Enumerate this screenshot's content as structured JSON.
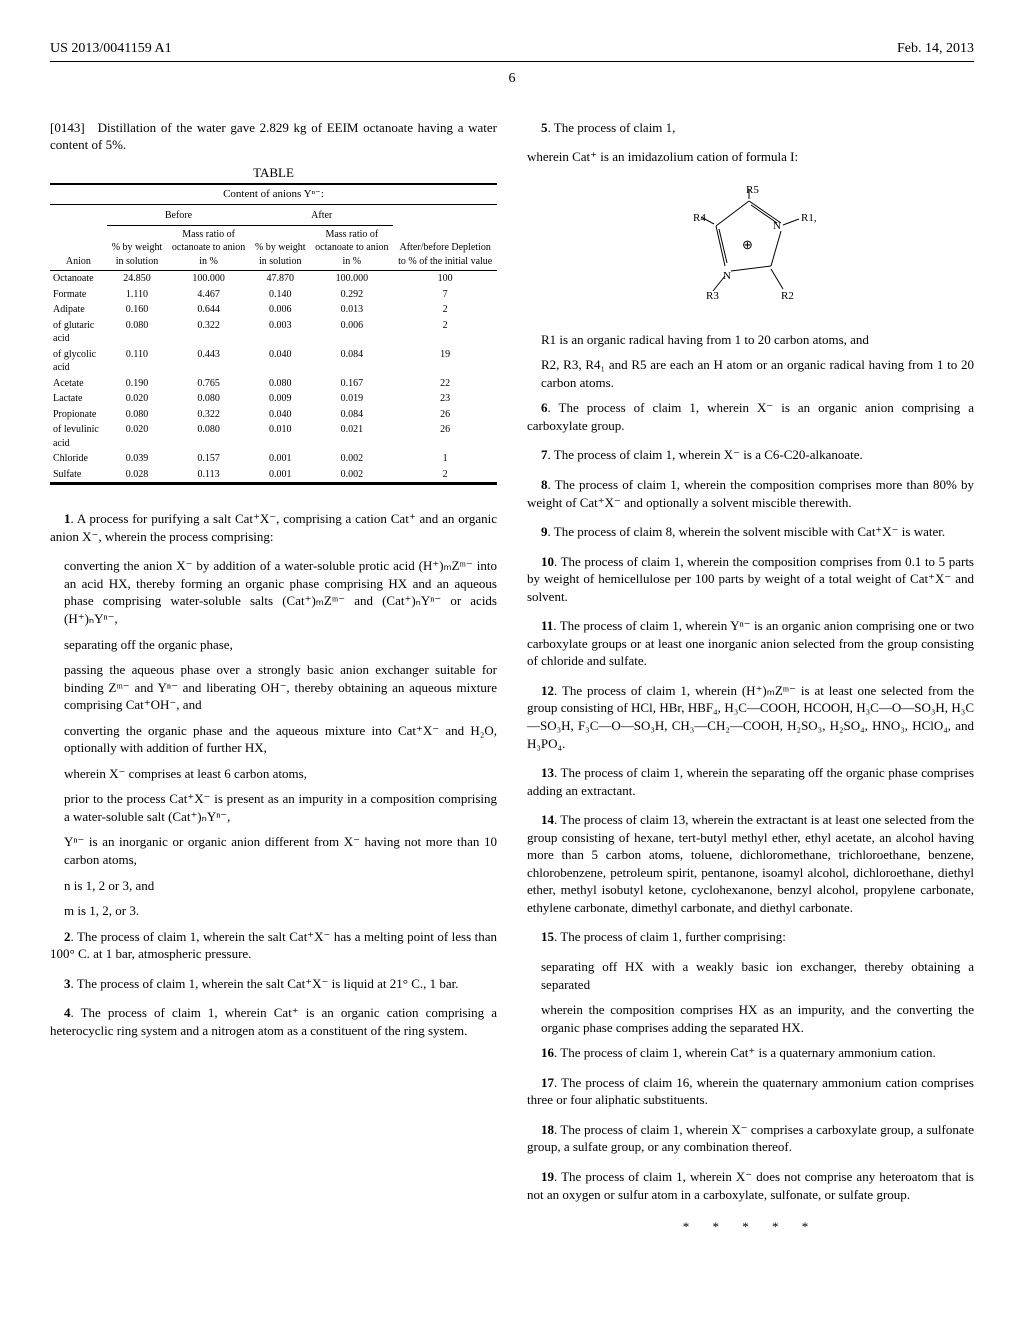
{
  "header": {
    "doc_number": "US 2013/0041159 A1",
    "date": "Feb. 14, 2013",
    "page_number": "6"
  },
  "left_col": {
    "para_0143": "[0143] Distillation of the water gave 2.829 kg of EEIM octanoate having a water content of 5%.",
    "table": {
      "caption": "TABLE",
      "subcaption": "Content of anions Yⁿ⁻:",
      "group_before": "Before",
      "group_after": "After",
      "col_headers": {
        "anion": "Anion",
        "before_wt": "% by weight in solution",
        "before_ratio": "Mass ratio of octanoate to anion in %",
        "after_wt": "% by weight in solution",
        "after_ratio": "Mass ratio of octanoate to anion in %",
        "depletion": "After/before Depletion to % of the initial value"
      },
      "rows": [
        [
          "Octanoate",
          "24.850",
          "100.000",
          "47.870",
          "100.000",
          "100"
        ],
        [
          "Formate",
          "1.110",
          "4.467",
          "0.140",
          "0.292",
          "7"
        ],
        [
          "Adipate",
          "0.160",
          "0.644",
          "0.006",
          "0.013",
          "2"
        ],
        [
          "of glutaric acid",
          "0.080",
          "0.322",
          "0.003",
          "0.006",
          "2"
        ],
        [
          "of glycolic acid",
          "0.110",
          "0.443",
          "0.040",
          "0.084",
          "19"
        ],
        [
          "Acetate",
          "0.190",
          "0.765",
          "0.080",
          "0.167",
          "22"
        ],
        [
          "Lactate",
          "0.020",
          "0.080",
          "0.009",
          "0.019",
          "23"
        ],
        [
          "Propionate",
          "0.080",
          "0.322",
          "0.040",
          "0.084",
          "26"
        ],
        [
          "of levulinic acid",
          "0.020",
          "0.080",
          "0.010",
          "0.021",
          "26"
        ],
        [
          "Chloride",
          "0.039",
          "0.157",
          "0.001",
          "0.002",
          "1"
        ],
        [
          "Sulfate",
          "0.028",
          "0.113",
          "0.001",
          "0.002",
          "2"
        ]
      ]
    },
    "claim1_intro": "1. A process for purifying a salt Cat⁺X⁻, comprising a cation Cat⁺ and an organic anion X⁻, wherein the process comprising:",
    "claim1_steps": [
      "converting the anion X⁻ by addition of a water-soluble protic acid (H⁺)ₘZᵐ⁻ into an acid HX, thereby forming an organic phase comprising HX and an aqueous phase comprising water-soluble salts (Cat⁺)ₘZᵐ⁻ and (Cat⁺)ₙYⁿ⁻ or acids (H⁺)ₙYⁿ⁻,",
      "separating off the organic phase,",
      "passing the aqueous phase over a strongly basic anion exchanger suitable for binding Zᵐ⁻ and Yⁿ⁻ and liberating OH⁻, thereby obtaining an aqueous mixture comprising Cat⁺OH⁻, and",
      "converting the organic phase and the aqueous mixture into Cat⁺X⁻ and H₂O, optionally with addition of further HX,",
      "wherein X⁻ comprises at least 6 carbon atoms,",
      "prior to the process Cat⁺X⁻ is present as an impurity in a composition comprising a water-soluble salt (Cat⁺)ₙYⁿ⁻,",
      "Yⁿ⁻ is an inorganic or organic anion different from X⁻ having not more than 10 carbon atoms,",
      "n is 1, 2 or 3, and",
      "m is 1, 2, or 3."
    ],
    "claim2": "2. The process of claim 1, wherein the salt Cat⁺X⁻ has a melting point of less than 100° C. at 1 bar, atmospheric pressure.",
    "claim3": "3. The process of claim 1, wherein the salt Cat⁺X⁻ is liquid at 21° C., 1 bar.",
    "claim4": "4. The process of claim 1, wherein Cat⁺ is an organic cation comprising a heterocyclic ring system and a nitrogen atom as a constituent of the ring system."
  },
  "right_col": {
    "claim5_intro": "5. The process of claim 1,",
    "claim5_wherein": "wherein Cat⁺ is an imidazolium cation of formula I:",
    "molecule": {
      "labels": [
        "R5",
        "R4",
        "R1",
        "R3",
        "R2"
      ],
      "center": "⊕"
    },
    "claim5_r1": "R1 is an organic radical having from 1 to 20 carbon atoms, and",
    "claim5_r2": "R2, R3, R4₁ and R5 are each an H atom or an organic radical having from 1 to 20 carbon atoms.",
    "claim6": "6. The process of claim 1, wherein X⁻ is an organic anion comprising a carboxylate group.",
    "claim7": "7. The process of claim 1, wherein X⁻ is a C6-C20-alkanoate.",
    "claim8": "8. The process of claim 1, wherein the composition comprises more than 80% by weight of Cat⁺X⁻ and optionally a solvent miscible therewith.",
    "claim9": "9. The process of claim 8, wherein the solvent miscible with Cat⁺X⁻ is water.",
    "claim10": "10. The process of claim 1, wherein the composition comprises from 0.1 to 5 parts by weight of hemicellulose per 100 parts by weight of a total weight of Cat⁺X⁻ and solvent.",
    "claim11": "11. The process of claim 1, wherein Yⁿ⁻ is an organic anion comprising one or two carboxylate groups or at least one inorganic anion selected from the group consisting of chloride and sulfate.",
    "claim12": "12. The process of claim 1, wherein (H⁺)ₘZᵐ⁻ is at least one selected from the group consisting of HCl, HBr, HBF₄, H₃C—COOH, HCOOH, H₃C—O—SO₃H, H₃C—SO₃H, F₃C—O—SO₃H, CH₃—CH₂—COOH, H₂SO₃, H₂SO₄, HNO₃, HClO₄, and H₃PO₄.",
    "claim13": "13. The process of claim 1, wherein the separating off the organic phase comprises adding an extractant.",
    "claim14": "14. The process of claim 13, wherein the extractant is at least one selected from the group consisting of hexane, tert-butyl methyl ether, ethyl acetate, an alcohol having more than 5 carbon atoms, toluene, dichloromethane, trichloroethane, benzene, chlorobenzene, petroleum spirit, pentanone, isoamyl alcohol, dichloroethane, diethyl ether, methyl isobutyl ketone, cyclohexanone, benzyl alcohol, propylene carbonate, ethylene carbonate, dimethyl carbonate, and diethyl carbonate.",
    "claim15_intro": "15. The process of claim 1, further comprising:",
    "claim15_sub1": "separating off HX with a weakly basic ion exchanger, thereby obtaining a separated",
    "claim15_sub2": "wherein the composition comprises HX as an impurity, and the converting the organic phase comprises adding the separated HX.",
    "claim16": "16. The process of claim 1, wherein Cat⁺ is a quaternary ammonium cation.",
    "claim17": "17. The process of claim 16, wherein the quaternary ammonium cation comprises three or four aliphatic substituents.",
    "claim18": "18. The process of claim 1, wherein X⁻ comprises a carboxylate group, a sulfonate group, a sulfate group, or any combination thereof.",
    "claim19": "19. The process of claim 1, wherein X⁻ does not comprise any heteroatom that is not an oxygen or sulfur atom in a carboxylate, sulfonate, or sulfate group."
  },
  "stars": "* * * * *"
}
